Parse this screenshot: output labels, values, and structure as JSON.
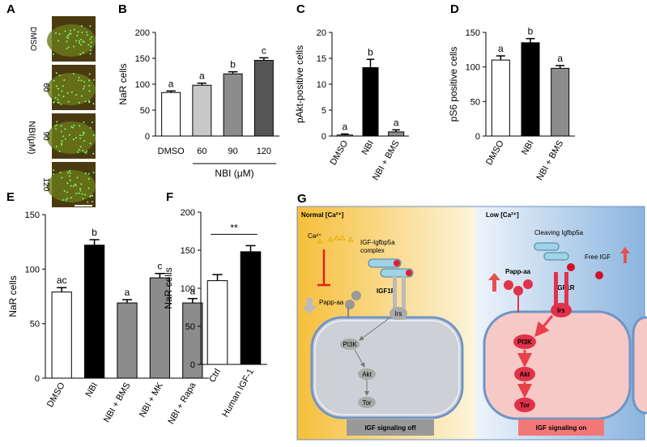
{
  "panel_labels": [
    "A",
    "B",
    "C",
    "D",
    "E",
    "F",
    "G"
  ],
  "image_panel": {
    "row_labels": [
      "DMSO",
      "60",
      "90",
      "120"
    ],
    "group_label": "NBI(μM)"
  },
  "chart_data": [
    {
      "type": "bar",
      "y_label": "NaR cells",
      "categories": [
        "DMSO",
        "60",
        "90",
        "120"
      ],
      "values": [
        84,
        98,
        120,
        146
      ],
      "errors": [
        3,
        4,
        4,
        5
      ],
      "colors": [
        "#ffffff",
        "#c8c8c8",
        "#8c8c8c",
        "#555555"
      ],
      "annotations": [
        "a",
        "a",
        "b",
        "c"
      ],
      "x_group_label": "NBI (μM)",
      "ylim": [
        0,
        200
      ],
      "yticks": [
        0,
        50,
        100,
        150,
        200
      ]
    },
    {
      "type": "bar",
      "y_label": "pAkt-positive cells",
      "categories": [
        "DMSO",
        "NBI",
        "NBI + BMS"
      ],
      "values": [
        0.2,
        13.2,
        0.8
      ],
      "errors": [
        0.2,
        1.6,
        0.4
      ],
      "colors": [
        "#ffffff",
        "#000000",
        "#8c8c8c"
      ],
      "annotations": [
        "a",
        "b",
        "a"
      ],
      "ylim": [
        0,
        20
      ],
      "yticks": [
        0,
        5,
        10,
        15,
        20
      ]
    },
    {
      "type": "bar",
      "y_label": "pS6 positive cells",
      "categories": [
        "DMSO",
        "NBI",
        "NBI + BMS"
      ],
      "values": [
        110,
        135,
        98
      ],
      "errors": [
        6,
        6,
        4
      ],
      "colors": [
        "#ffffff",
        "#000000",
        "#8c8c8c"
      ],
      "annotations": [
        "a",
        "b",
        "a"
      ],
      "ylim": [
        0,
        150
      ],
      "yticks": [
        0,
        50,
        100,
        150
      ]
    },
    {
      "type": "bar",
      "y_label": "NaR cells",
      "categories": [
        "DMSO",
        "NBI",
        "NBI + BMS",
        "NBI + MK",
        "NBI + Rapa"
      ],
      "values": [
        79,
        122,
        69,
        92,
        69
      ],
      "errors": [
        4,
        5,
        3,
        4,
        4
      ],
      "colors": [
        "#ffffff",
        "#000000",
        "#8c8c8c",
        "#8c8c8c",
        "#8c8c8c"
      ],
      "annotations": [
        "ac",
        "b",
        "a",
        "c",
        "a"
      ],
      "ylim": [
        0,
        150
      ],
      "yticks": [
        0,
        50,
        100,
        150
      ]
    },
    {
      "type": "bar",
      "y_label": "NaR cells",
      "categories": [
        "Ctrl",
        "Human IGF-1"
      ],
      "values": [
        110,
        148
      ],
      "errors": [
        8,
        8
      ],
      "colors": [
        "#ffffff",
        "#000000"
      ],
      "significance": "**",
      "ylim": [
        0,
        200
      ],
      "yticks": [
        0,
        50,
        100,
        150,
        200
      ]
    }
  ],
  "diagram": {
    "left": {
      "title": "Normal [Ca²⁺]",
      "ion": "Ca²⁺",
      "complex": [
        "IGF-Igfbp5a",
        "complex"
      ],
      "protease": "Papp-aa",
      "receptor": "IGF1R",
      "nodes": [
        "Irs",
        "PI3K",
        "Akt",
        "Tor"
      ],
      "status": "IGF signaling off"
    },
    "right": {
      "title": "Low [Ca²⁺]",
      "cleaving": "Cleaving Igfbp5a",
      "free": "Free IGF",
      "protease": "Papp-aa",
      "receptor": "IGF1R",
      "nodes": [
        "Irs",
        "PI3K",
        "Akt",
        "Tor"
      ],
      "status": "IGF signaling on"
    }
  }
}
